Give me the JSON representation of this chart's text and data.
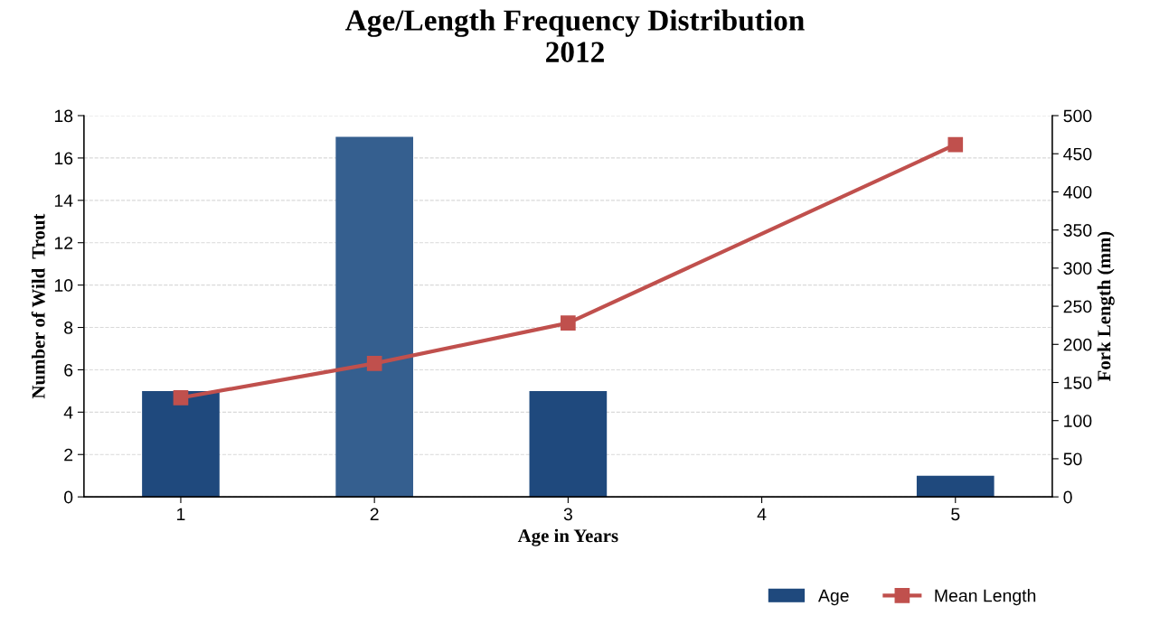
{
  "chart_data": {
    "type": "bar",
    "title": "Age/Length Frequency Distribution\n2012",
    "xlabel": "Age in Years",
    "ylabel": "Number of Wild  Trout",
    "y2label": "Fork Length (mm)",
    "x": [
      1,
      2,
      3,
      4,
      5
    ],
    "xlim": [
      0.5,
      5.5
    ],
    "xticks": [
      1,
      2,
      3,
      4,
      5
    ],
    "series": [
      {
        "name": "Age",
        "color": "#1f497d",
        "colors": [
          "#1f497d",
          "#355f8f",
          "#1f497d",
          "#1f497d",
          "#1f497d"
        ],
        "values": [
          5,
          17,
          5,
          0,
          1
        ]
      },
      {
        "name": "Mean Length",
        "type": "line",
        "axis": "y2",
        "color": "#c0504d",
        "x": [
          1,
          2,
          3,
          5
        ],
        "values": [
          130,
          175,
          228,
          462
        ],
        "marker": "square",
        "line_style": "solid"
      }
    ],
    "ylim": [
      0,
      18
    ],
    "yticks": [
      0,
      2,
      4,
      6,
      8,
      10,
      12,
      14,
      16,
      18
    ],
    "y2lim": [
      0,
      500
    ],
    "y2ticks": [
      0,
      50,
      100,
      150,
      200,
      250,
      300,
      350,
      400,
      450,
      500
    ],
    "grid": "y",
    "legend": "bottom right"
  }
}
